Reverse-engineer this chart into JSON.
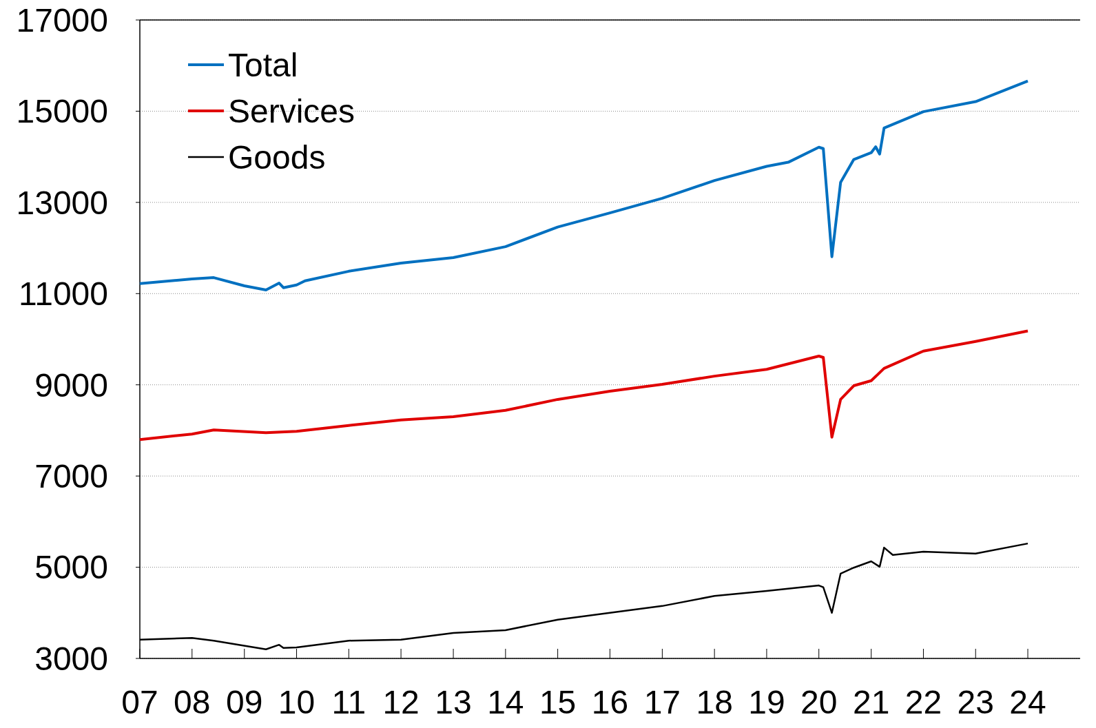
{
  "chart_data": {
    "type": "line",
    "xlim": [
      "2007-01",
      "2025-01"
    ],
    "ylim": [
      3000,
      17000
    ],
    "yticks": [
      3000,
      5000,
      7000,
      9000,
      11000,
      13000,
      15000,
      17000
    ],
    "xticks": [
      {
        "value": "2007-01",
        "label": "07"
      },
      {
        "value": "2008-01",
        "label": "08"
      },
      {
        "value": "2009-01",
        "label": "09"
      },
      {
        "value": "2010-01",
        "label": "10"
      },
      {
        "value": "2011-01",
        "label": "11"
      },
      {
        "value": "2012-01",
        "label": "12"
      },
      {
        "value": "2013-01",
        "label": "13"
      },
      {
        "value": "2014-01",
        "label": "14"
      },
      {
        "value": "2015-01",
        "label": "15"
      },
      {
        "value": "2016-01",
        "label": "16"
      },
      {
        "value": "2017-01",
        "label": "17"
      },
      {
        "value": "2018-01",
        "label": "18"
      },
      {
        "value": "2019-01",
        "label": "19"
      },
      {
        "value": "2020-01",
        "label": "20"
      },
      {
        "value": "2021-01",
        "label": "21"
      },
      {
        "value": "2022-01",
        "label": "22"
      },
      {
        "value": "2023-01",
        "label": "23"
      },
      {
        "value": "2024-01",
        "label": "24"
      }
    ],
    "grid": "y",
    "legend": "top left",
    "marker": "none",
    "line_style": "solid",
    "series": [
      {
        "name": "Total",
        "color": "#0070c0",
        "x": [
          "2007-01",
          "2008-01",
          "2008-06",
          "2009-01",
          "2009-06",
          "2009-09",
          "2009-10",
          "2010-01",
          "2010-03",
          "2011-01",
          "2012-01",
          "2013-01",
          "2014-01",
          "2015-01",
          "2016-01",
          "2017-01",
          "2018-01",
          "2019-01",
          "2019-06",
          "2020-01",
          "2020-02",
          "2020-04",
          "2020-06",
          "2020-09",
          "2021-01",
          "2021-02",
          "2021-03",
          "2021-04",
          "2022-01",
          "2023-01",
          "2024-01"
        ],
        "values": [
          11220,
          11320,
          11350,
          11170,
          11080,
          11230,
          11130,
          11190,
          11280,
          11490,
          11670,
          11790,
          12030,
          12460,
          12770,
          13090,
          13480,
          13790,
          13880,
          14210,
          14180,
          11810,
          13440,
          13940,
          14090,
          14220,
          14060,
          14630,
          14990,
          15210,
          15660
        ]
      },
      {
        "name": "Services",
        "color": "#e00000",
        "x": [
          "2007-01",
          "2008-01",
          "2008-06",
          "2009-06",
          "2010-01",
          "2011-01",
          "2012-01",
          "2013-01",
          "2014-01",
          "2015-01",
          "2016-01",
          "2017-01",
          "2018-01",
          "2019-01",
          "2020-01",
          "2020-02",
          "2020-04",
          "2020-06",
          "2020-09",
          "2021-01",
          "2021-04",
          "2022-01",
          "2023-01",
          "2024-01"
        ],
        "values": [
          7800,
          7920,
          8010,
          7950,
          7980,
          8110,
          8230,
          8300,
          8440,
          8680,
          8860,
          9010,
          9190,
          9340,
          9630,
          9600,
          7850,
          8680,
          8980,
          9090,
          9360,
          9740,
          9950,
          10180
        ]
      },
      {
        "name": "Goods",
        "color": "#000000",
        "x": [
          "2007-01",
          "2008-01",
          "2008-06",
          "2009-06",
          "2009-09",
          "2009-10",
          "2010-01",
          "2011-01",
          "2012-01",
          "2013-01",
          "2014-01",
          "2015-01",
          "2016-01",
          "2017-01",
          "2018-01",
          "2019-01",
          "2020-01",
          "2020-02",
          "2020-04",
          "2020-06",
          "2020-09",
          "2021-01",
          "2021-03",
          "2021-04",
          "2021-06",
          "2022-01",
          "2023-01",
          "2024-01"
        ],
        "values": [
          3410,
          3450,
          3390,
          3200,
          3300,
          3230,
          3240,
          3390,
          3410,
          3560,
          3620,
          3850,
          4000,
          4150,
          4370,
          4480,
          4600,
          4560,
          4000,
          4860,
          4990,
          5130,
          5010,
          5430,
          5270,
          5340,
          5300,
          5520
        ]
      }
    ]
  }
}
